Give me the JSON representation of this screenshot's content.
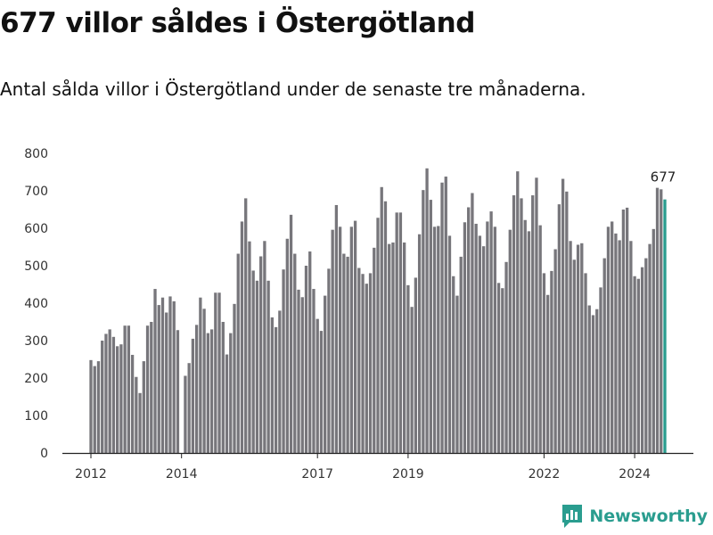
{
  "title": "677 villor såldes i Östergötland",
  "subtitle": "Antal sålda villor i Östergötland under de senaste tre månaderna.",
  "brand": {
    "name": "Newsworthy",
    "icon": "bar-chart-pin-icon",
    "color": "#2a9d8f"
  },
  "colors": {
    "bar": "#77767b",
    "highlight": "#2a9d8f",
    "axis": "#222222",
    "grid": "#dddddd"
  },
  "chart_data": {
    "type": "bar",
    "title": "677 villor såldes i Östergötland",
    "xlabel": "",
    "ylabel": "",
    "ylim": [
      0,
      800
    ],
    "yticks": [
      0,
      100,
      200,
      300,
      400,
      500,
      600,
      700,
      800
    ],
    "ytick_labels": [
      "0",
      "100",
      "200",
      "300",
      "400",
      "500",
      "600",
      "700",
      "800"
    ],
    "grid": false,
    "legend": "none",
    "x_start": "2012-01",
    "x_interval": "month",
    "x_ticks": [
      {
        "label": "2012",
        "date": "2012-01"
      },
      {
        "label": "2014",
        "date": "2014-01"
      },
      {
        "label": "2017",
        "date": "2017-01"
      },
      {
        "label": "2019",
        "date": "2019-01"
      },
      {
        "label": "2022",
        "date": "2022-01"
      },
      {
        "label": "2024",
        "date": "2024-01"
      }
    ],
    "values": [
      248,
      232,
      245,
      300,
      318,
      330,
      310,
      285,
      290,
      340,
      340,
      262,
      203,
      160,
      245,
      340,
      350,
      438,
      395,
      415,
      375,
      418,
      405,
      328,
      null,
      206,
      240,
      305,
      342,
      415,
      385,
      320,
      330,
      428,
      428,
      350,
      263,
      320,
      398,
      532,
      618,
      680,
      565,
      487,
      460,
      525,
      566,
      460,
      362,
      336,
      380,
      490,
      572,
      636,
      532,
      436,
      416,
      500,
      538,
      438,
      358,
      326,
      420,
      492,
      596,
      662,
      604,
      532,
      524,
      604,
      620,
      494,
      478,
      452,
      480,
      548,
      628,
      710,
      672,
      558,
      562,
      642,
      642,
      562,
      448,
      390,
      468,
      584,
      702,
      760,
      676,
      604,
      606,
      722,
      738,
      580,
      472,
      420,
      524,
      616,
      656,
      694,
      612,
      580,
      552,
      618,
      645,
      604,
      454,
      440,
      510,
      596,
      688,
      752,
      680,
      622,
      592,
      688,
      735,
      608,
      480,
      422,
      486,
      544,
      664,
      732,
      698,
      566,
      516,
      556,
      560,
      480,
      394,
      368,
      384,
      442,
      520,
      604,
      618,
      586,
      568,
      650,
      655,
      566,
      472,
      465,
      496,
      520,
      558,
      598,
      708,
      704,
      677
    ],
    "highlight_last": true,
    "annotations": [
      {
        "text": "677",
        "target": "last-bar"
      }
    ]
  }
}
